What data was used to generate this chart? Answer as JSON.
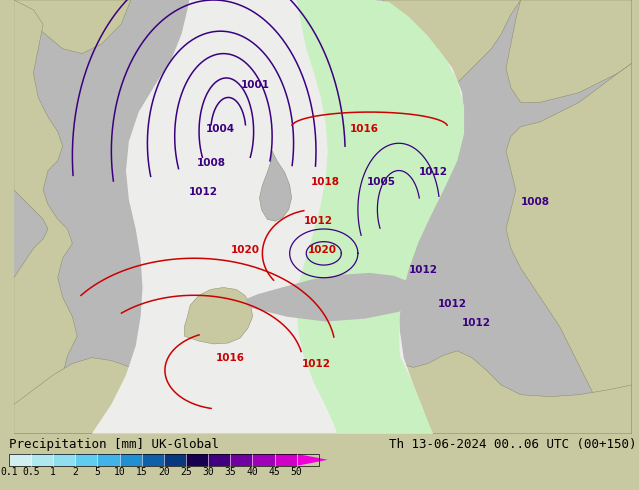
{
  "title_left": "Precipitation [mm] UK-Global",
  "title_right": "Th 13-06-2024 00..06 UTC (00+150)",
  "colorbar_values": [
    0.1,
    0.5,
    1,
    2,
    5,
    10,
    15,
    20,
    25,
    30,
    35,
    40,
    45,
    50
  ],
  "colorbar_colors": [
    "#d0f0f0",
    "#b0e8f0",
    "#90dff0",
    "#60ccf0",
    "#40b4e8",
    "#2090d0",
    "#1060a8",
    "#083880",
    "#180050",
    "#400080",
    "#7000a0",
    "#a000b8",
    "#d000c8",
    "#f000d8"
  ],
  "background_land": "#c8c9a0",
  "background_sea": "#b8b8b8",
  "forecast_white": "#ededec",
  "forecast_green": "#c8f0c0",
  "contour_blue": "#3b0080",
  "contour_red": "#cc0000",
  "title_fontsize": 9,
  "cbar_fontsize": 7
}
